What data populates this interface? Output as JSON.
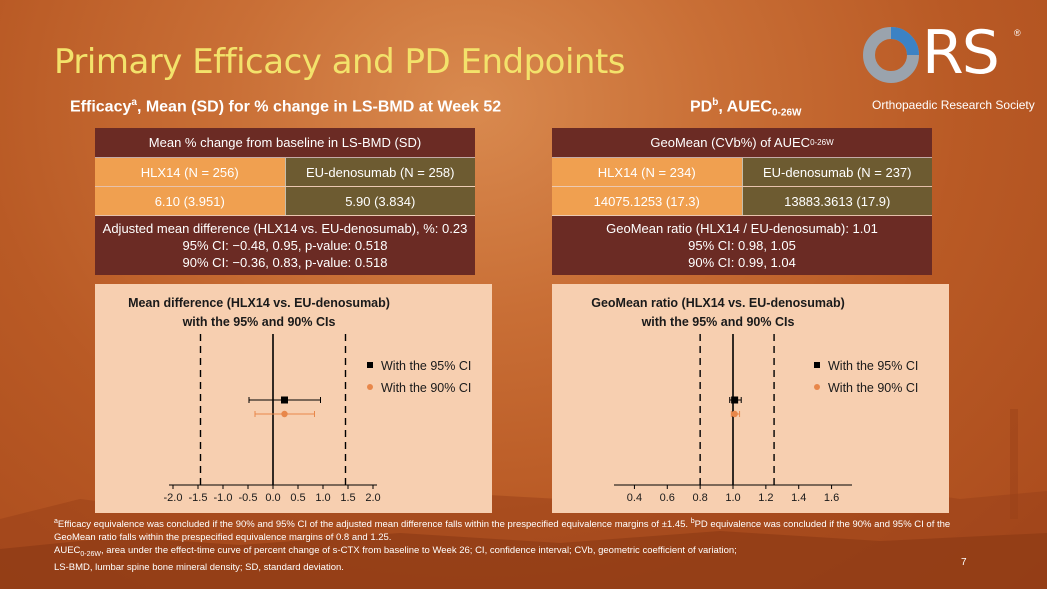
{
  "slide": {
    "title": "Primary Efficacy and PD Endpoints",
    "page_number": "7",
    "logo": {
      "letters": "ORS",
      "registered": "®",
      "society": "Orthopaedic Research Society"
    }
  },
  "left": {
    "subhead_pre": "Efficacy",
    "subhead_sup": "a",
    "subhead_post": ", Mean (SD) for % change in LS-BMD at Week 52",
    "table": {
      "header": "Mean % change from baseline in LS-BMD (SD)",
      "group1": "HLX14 (N = 256)",
      "group2": "EU-denosumab (N = 258)",
      "value1": "6.10 (3.951)",
      "value2": "5.90 (3.834)",
      "result_line1": "Adjusted mean difference (HLX14 vs. EU-denosumab), %: 0.23",
      "result_line2": "95% CI: −0.48, 0.95, p-value: 0.518",
      "result_line3": "90% CI: −0.36, 0.83, p-value: 0.518"
    }
  },
  "right": {
    "subhead_pre": "PD",
    "subhead_sup": "b",
    "subhead_mid": ", AUEC",
    "subhead_sub": "0-26W",
    "table": {
      "header_pre": "GeoMean (CVb%) of AUEC",
      "header_sub": "0-26W",
      "group1": "HLX14 (N = 234)",
      "group2": "EU-denosumab (N = 237)",
      "value1": "14075.1253 (17.3)",
      "value2": "13883.3613 (17.9)",
      "result_line1": "GeoMean ratio (HLX14 / EU-denosumab): 1.01",
      "result_line2": "95% CI: 0.98, 1.05",
      "result_line3": "90% CI: 0.99, 1.04"
    }
  },
  "footnotes": {
    "a_sup": "a",
    "a_text": "Efficacy equivalence was concluded if the 90% and 95% CI of the adjusted mean difference falls within the prespecified equivalence margins of ±1.45. ",
    "b_sup": "b",
    "b_text": "PD equivalence was concluded if the 90% and 95% CI of the GeoMean ratio falls within the prespecified equivalence margins of 0.8 and 1.25.",
    "auec_pre": "AUEC",
    "auec_sub": "0-26W",
    "auec_text": ", area under the effect-time curve of percent change of s-CTX from baseline to Week 26; CI, confidence interval; CVb, geometric coefficient of variation;",
    "lsbmd_text": "LS-BMD, lumbar spine bone mineral density; SD, standard deviation."
  },
  "colors": {
    "accent_title": "#f3e26b",
    "table_dark": "#6b2b24",
    "table_orange": "#f0a050",
    "table_olive": "#6d5b31",
    "panel_bg": "#f7cfb0",
    "ci95": "#000000",
    "ci90": "#e8874a"
  },
  "chart_data": [
    {
      "type": "scatter",
      "title_line1": "Mean difference (HLX14 vs. EU-denosumab)",
      "title_line2": "with the 95% and 90% CIs",
      "xlim": [
        -2.0,
        2.0
      ],
      "ticks": [
        "-2.0",
        "-1.5",
        "-1.0",
        "-0.5",
        "0.0",
        "0.5",
        "1.0",
        "1.5",
        "2.0"
      ],
      "reference_line": 0,
      "margins": [
        -1.45,
        1.45
      ],
      "series": [
        {
          "name": "With the 95% CI",
          "estimate": 0.23,
          "lower": -0.48,
          "upper": 0.95,
          "color": "#000000",
          "marker": "square"
        },
        {
          "name": "With the 90% CI",
          "estimate": 0.23,
          "lower": -0.36,
          "upper": 0.83,
          "color": "#e8874a",
          "marker": "circle"
        }
      ],
      "legend": "right"
    },
    {
      "type": "scatter",
      "title_line1": "GeoMean ratio (HLX14 vs. EU-denosumab)",
      "title_line2": "with the 95% and 90% CIs",
      "xlim": [
        0.3,
        1.7
      ],
      "ticks": [
        "0.4",
        "0.6",
        "0.8",
        "1.0",
        "1.2",
        "1.4",
        "1.6"
      ],
      "reference_line": 1.0,
      "margins": [
        0.8,
        1.25
      ],
      "series": [
        {
          "name": "With the 95% CI",
          "estimate": 1.01,
          "lower": 0.98,
          "upper": 1.05,
          "color": "#000000",
          "marker": "square"
        },
        {
          "name": "With the 90% CI",
          "estimate": 1.01,
          "lower": 0.99,
          "upper": 1.04,
          "color": "#e8874a",
          "marker": "circle"
        }
      ],
      "legend": "right"
    }
  ]
}
